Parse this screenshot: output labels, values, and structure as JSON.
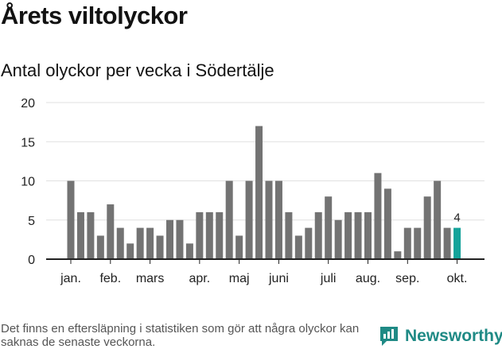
{
  "header": {
    "title": "Årets viltolyckor",
    "subtitle": "Antal olyckor per vecka i Södertälje"
  },
  "chart_data": {
    "type": "bar",
    "title": "Antal olyckor per vecka i Södertälje",
    "xlabel": "",
    "ylabel": "",
    "ylim": [
      0,
      20
    ],
    "yticks": [
      0,
      5,
      10,
      15,
      20
    ],
    "grid": true,
    "values": [
      10,
      6,
      6,
      3,
      7,
      4,
      2,
      4,
      4,
      3,
      5,
      5,
      2,
      6,
      6,
      6,
      10,
      3,
      10,
      17,
      10,
      10,
      6,
      3,
      4,
      6,
      8,
      5,
      6,
      6,
      6,
      11,
      9,
      1,
      4,
      4,
      8,
      10,
      4,
      4
    ],
    "month_labels": [
      {
        "label": "jan.",
        "index": 0
      },
      {
        "label": "feb.",
        "index": 4
      },
      {
        "label": "mars",
        "index": 8
      },
      {
        "label": "apr.",
        "index": 13
      },
      {
        "label": "maj",
        "index": 17
      },
      {
        "label": "juni",
        "index": 21
      },
      {
        "label": "juli",
        "index": 26
      },
      {
        "label": "aug.",
        "index": 30
      },
      {
        "label": "sep.",
        "index": 34
      },
      {
        "label": "okt.",
        "index": 39
      }
    ],
    "highlight_index": 39,
    "highlight_label": "4",
    "colors": {
      "bar": "#737373",
      "highlight": "#14a39a",
      "grid": "#e0e0e0",
      "axis": "#222222"
    }
  },
  "footer": {
    "note": "Det finns en eftersläpning i statistiken som gör att några olyckor kan saknas de senaste veckorna.",
    "brand": "Newsworthy"
  }
}
